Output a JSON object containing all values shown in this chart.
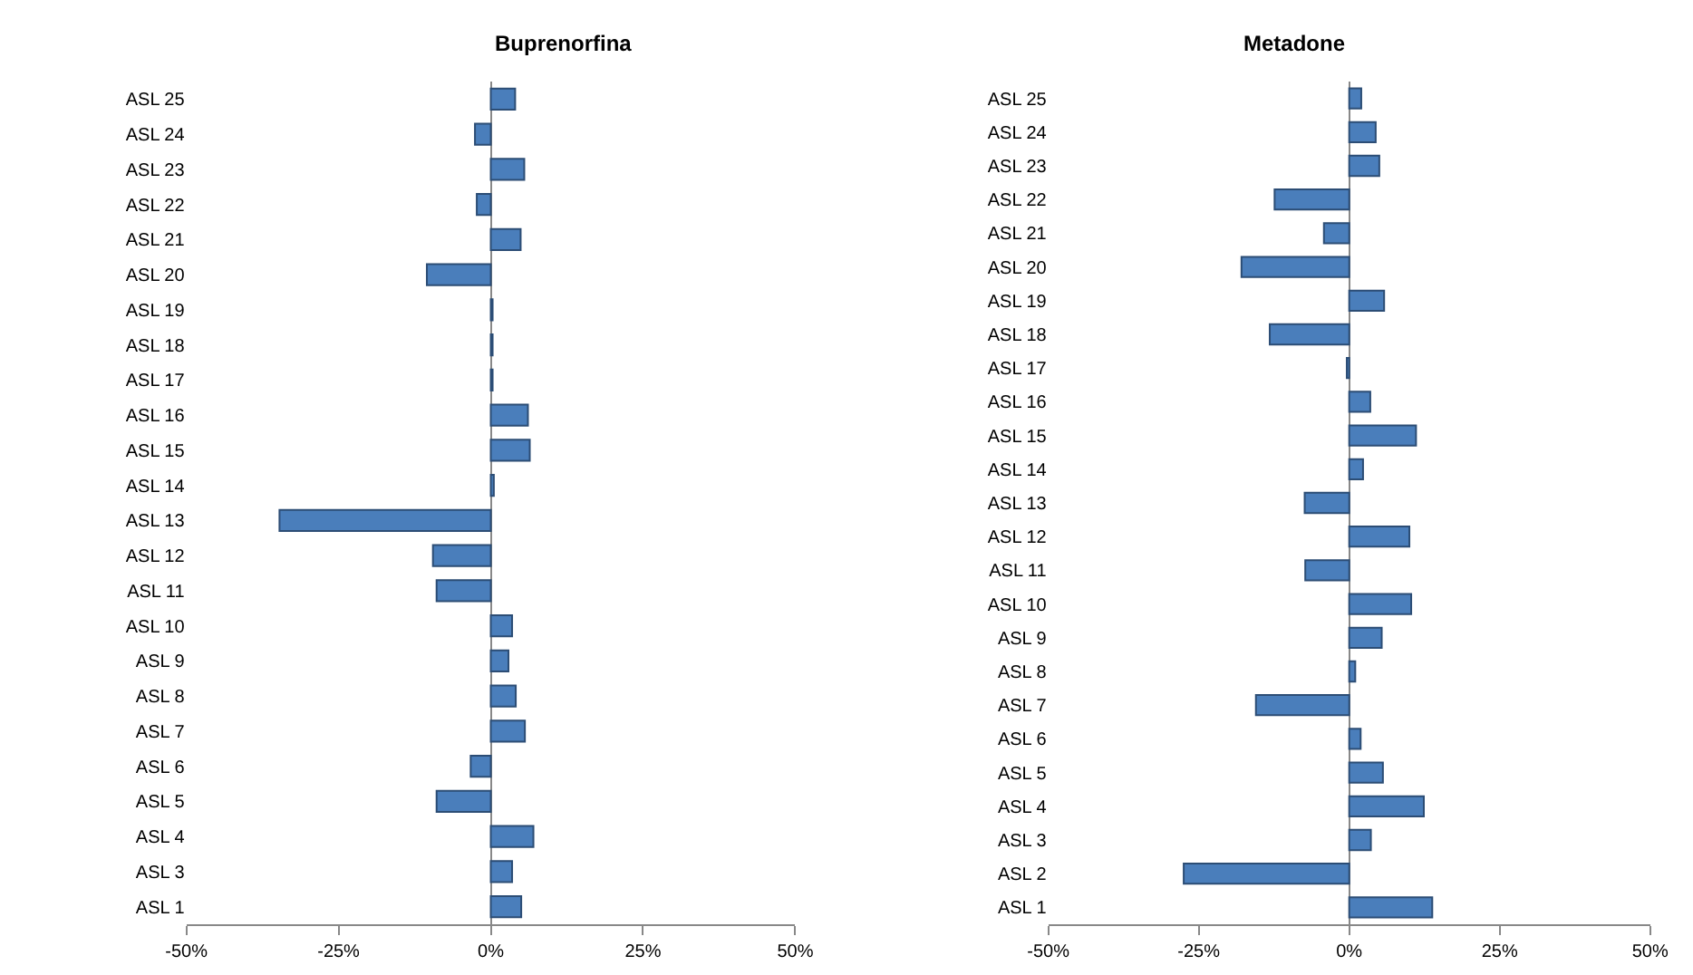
{
  "chart_data": [
    {
      "type": "bar",
      "orientation": "horizontal",
      "title": "Buprenorfina",
      "color": "#4a7ebb",
      "categories": [
        "ASL 25",
        "ASL 24",
        "ASL 23",
        "ASL 22",
        "ASL 21",
        "ASL 20",
        "ASL 19",
        "ASL 18",
        "ASL 17",
        "ASL 16",
        "ASL 15",
        "ASL 14",
        "ASL 13",
        "ASL 12",
        "ASL 11",
        "ASL 10",
        "ASL 9",
        "ASL 8",
        "ASL 7",
        "ASL 6",
        "ASL 5",
        "ASL 4",
        "ASL 3",
        "ASL 1"
      ],
      "values": [
        4.0,
        -2.6,
        5.5,
        -2.3,
        4.9,
        -10.5,
        0.3,
        0.3,
        0.3,
        6.1,
        6.4,
        0.5,
        -34.7,
        -9.5,
        -8.9,
        3.5,
        2.9,
        4.1,
        5.6,
        -3.3,
        -8.9,
        7.0,
        3.5,
        5.0
      ],
      "xlim": [
        -50,
        50
      ],
      "xticks": [
        {
          "value": -50,
          "label": "-50%"
        },
        {
          "value": -25,
          "label": "-25%"
        },
        {
          "value": 0,
          "label": "0%"
        },
        {
          "value": 25,
          "label": "25%"
        },
        {
          "value": 50,
          "label": "50%"
        }
      ]
    },
    {
      "type": "bar",
      "orientation": "horizontal",
      "title": "Metadone",
      "color": "#4a7ebb",
      "categories": [
        "ASL 25",
        "ASL 24",
        "ASL 23",
        "ASL 22",
        "ASL 21",
        "ASL 20",
        "ASL 19",
        "ASL 18",
        "ASL 17",
        "ASL 16",
        "ASL 15",
        "ASL 14",
        "ASL 13",
        "ASL 12",
        "ASL 11",
        "ASL 10",
        "ASL 9",
        "ASL 8",
        "ASL 7",
        "ASL 6",
        "ASL 5",
        "ASL 4",
        "ASL 3",
        "ASL 2",
        "ASL 1"
      ],
      "values": [
        2.0,
        4.4,
        5.0,
        -12.4,
        -4.2,
        -17.9,
        5.8,
        -13.2,
        -0.4,
        3.5,
        11.1,
        2.3,
        -7.4,
        10.0,
        -7.3,
        10.3,
        5.4,
        1.0,
        -15.5,
        1.9,
        5.6,
        12.4,
        3.6,
        -27.5,
        13.8
      ],
      "xlim": [
        -50,
        50
      ],
      "xticks": [
        {
          "value": -50,
          "label": "-50%"
        },
        {
          "value": -25,
          "label": "-25%"
        },
        {
          "value": 0,
          "label": "0%"
        },
        {
          "value": 25,
          "label": "25%"
        },
        {
          "value": 50,
          "label": "50%"
        }
      ]
    }
  ]
}
